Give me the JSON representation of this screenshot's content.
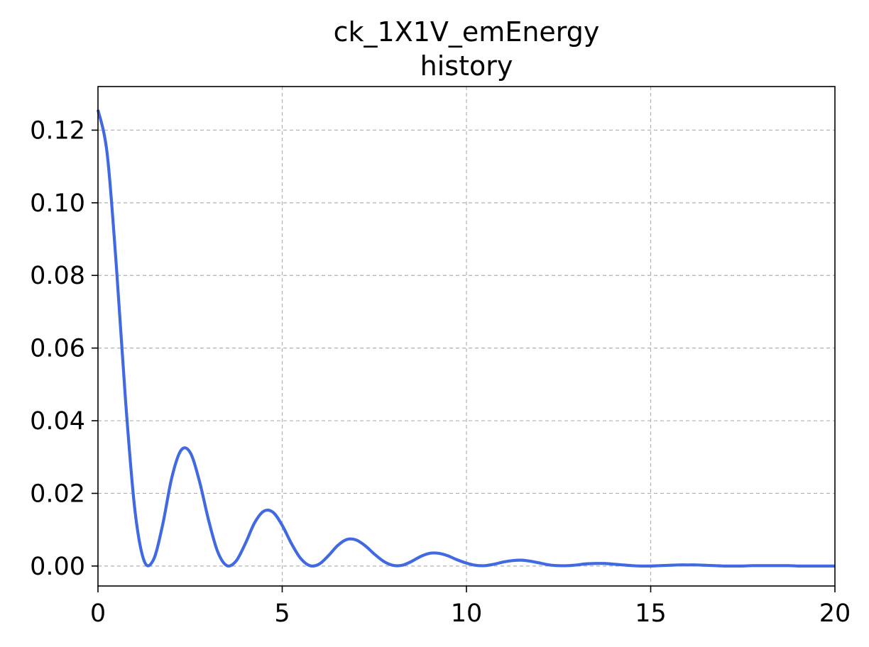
{
  "chart_data": {
    "type": "line",
    "title": "ck_1X1V_emEnergy",
    "subtitle": "history",
    "xlabel": "",
    "ylabel": "",
    "xlim": [
      0,
      20
    ],
    "ylim": [
      -0.0055,
      0.132
    ],
    "grid": true,
    "x_ticks": [
      0,
      5,
      10,
      15,
      20
    ],
    "x_tick_labels": [
      "0",
      "5",
      "10",
      "15",
      "20"
    ],
    "y_ticks": [
      0.0,
      0.02,
      0.04,
      0.06,
      0.08,
      0.1,
      0.12
    ],
    "y_tick_labels": [
      "0.00",
      "0.02",
      "0.04",
      "0.06",
      "0.08",
      "0.10",
      "0.12"
    ],
    "series": [
      {
        "color": "#4169e1",
        "x": [
          0,
          0.25,
          0.5,
          0.75,
          1.0,
          1.25,
          1.5,
          1.75,
          2.0,
          2.25,
          2.5,
          2.75,
          3.0,
          3.25,
          3.5,
          3.75,
          4.0,
          4.25,
          4.5,
          4.75,
          5.0,
          5.25,
          5.5,
          5.75,
          6.0,
          6.25,
          6.5,
          6.75,
          7.0,
          7.25,
          7.5,
          7.75,
          8.0,
          8.25,
          8.5,
          8.75,
          9.0,
          9.25,
          9.5,
          9.75,
          10.0,
          10.25,
          10.5,
          10.75,
          11.0,
          11.25,
          11.5,
          11.75,
          12.0,
          12.25,
          12.5,
          12.75,
          13.0,
          13.25,
          13.5,
          13.75,
          14.0,
          14.25,
          14.5,
          14.75,
          15.0,
          15.25,
          15.5,
          15.75,
          16.0,
          16.25,
          16.5,
          16.75,
          17.0,
          17.25,
          17.5,
          17.75,
          18.0,
          18.25,
          18.5,
          18.75,
          19.0,
          19.25,
          19.5,
          19.75,
          20.0
        ],
        "y": [
          0.1256,
          0.1135,
          0.0824,
          0.0453,
          0.0156,
          0.0015,
          0.0016,
          0.0111,
          0.0242,
          0.0318,
          0.0313,
          0.0235,
          0.0127,
          0.0039,
          0.0001,
          0.0014,
          0.0062,
          0.0119,
          0.0151,
          0.0148,
          0.0112,
          0.0062,
          0.0021,
          0.0001,
          0.0005,
          0.0028,
          0.0056,
          0.0073,
          0.0072,
          0.0056,
          0.0033,
          0.0013,
          0.0002,
          0.0002,
          0.0012,
          0.0026,
          0.0035,
          0.0035,
          0.0028,
          0.0017,
          0.0008,
          0.0002,
          0.0001,
          0.0005,
          0.0011,
          0.0015,
          0.0016,
          0.0013,
          0.0008,
          0.0003,
          0.0001,
          0.0001,
          0.0003,
          0.0006,
          0.0007,
          0.0007,
          0.0005,
          0.0003,
          0.0001,
          0.0,
          0.0,
          0.0001,
          0.0002,
          0.0003,
          0.0003,
          0.0003,
          0.0002,
          0.0001,
          0.0,
          0.0,
          0.0,
          0.0001,
          0.0001,
          0.0001,
          0.0001,
          0.0001,
          0.0,
          0.0,
          0.0,
          0.0,
          0.0
        ]
      }
    ]
  }
}
